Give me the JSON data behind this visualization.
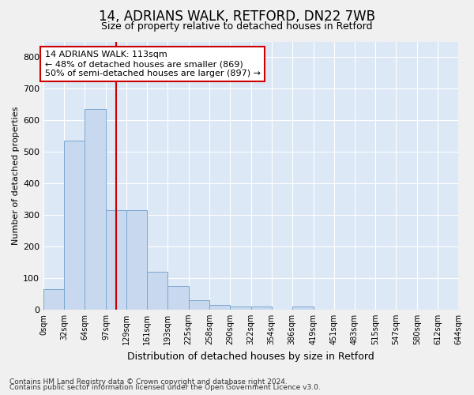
{
  "title_line1": "14, ADRIANS WALK, RETFORD, DN22 7WB",
  "title_line2": "Size of property relative to detached houses in Retford",
  "xlabel": "Distribution of detached houses by size in Retford",
  "ylabel": "Number of detached properties",
  "footer_line1": "Contains HM Land Registry data © Crown copyright and database right 2024.",
  "footer_line2": "Contains public sector information licensed under the Open Government Licence v3.0.",
  "annotation_line1": "14 ADRIANS WALK: 113sqm",
  "annotation_line2": "← 48% of detached houses are smaller (869)",
  "annotation_line3": "50% of semi-detached houses are larger (897) →",
  "bar_color": "#c8d8ee",
  "bar_edge_color": "#7aa8d0",
  "axes_bg_color": "#dce8f5",
  "fig_bg_color": "#f0f0f0",
  "grid_color": "#ffffff",
  "red_line_color": "#cc0000",
  "annotation_box_edge_color": "#cc0000",
  "annotation_box_face_color": "#ffffff",
  "xlim_min": 0,
  "xlim_max": 644,
  "ylim_min": 0,
  "ylim_max": 850,
  "bin_edges": [
    0,
    32,
    64,
    97,
    129,
    161,
    193,
    225,
    258,
    290,
    322,
    354,
    386,
    419,
    451,
    483,
    515,
    547,
    580,
    612,
    644
  ],
  "bar_heights": [
    65,
    535,
    635,
    315,
    315,
    120,
    75,
    30,
    15,
    10,
    10,
    0,
    10,
    0,
    0,
    0,
    0,
    0,
    0,
    0
  ],
  "property_size": 113,
  "yticks": [
    0,
    100,
    200,
    300,
    400,
    500,
    600,
    700,
    800
  ],
  "xtick_labels": [
    "0sqm",
    "32sqm",
    "64sqm",
    "97sqm",
    "129sqm",
    "161sqm",
    "193sqm",
    "225sqm",
    "258sqm",
    "290sqm",
    "322sqm",
    "354sqm",
    "386sqm",
    "419sqm",
    "451sqm",
    "483sqm",
    "515sqm",
    "547sqm",
    "580sqm",
    "612sqm",
    "644sqm"
  ],
  "title_fontsize": 12,
  "subtitle_fontsize": 9,
  "ylabel_fontsize": 8,
  "xlabel_fontsize": 9,
  "ytick_fontsize": 8,
  "xtick_fontsize": 7,
  "annotation_fontsize": 8,
  "footer_fontsize": 6.5
}
